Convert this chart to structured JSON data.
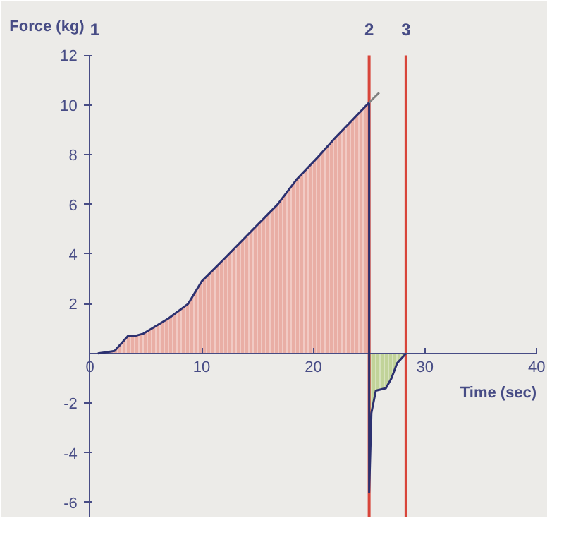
{
  "chart_data": {
    "type": "area",
    "xlabel": "Time (sec)",
    "ylabel": "Force (kg)",
    "xlim": [
      -8,
      41
    ],
    "ylim": [
      -6.6,
      14.2
    ],
    "xticks": [
      0,
      10,
      20,
      30,
      40
    ],
    "yticks": [
      -6,
      -4,
      -2,
      2,
      4,
      6,
      8,
      10,
      12
    ],
    "grid": false,
    "series": [
      {
        "color": "#e9a79d",
        "x": [
          0.7,
          1.5,
          2.2,
          2.8,
          3.4,
          4.0,
          4.8,
          7.0,
          8.8,
          10,
          12,
          14.4,
          16.8,
          18.5,
          20.4,
          22,
          23.5,
          25
        ],
        "values": [
          0,
          0.05,
          0.1,
          0.4,
          0.7,
          0.7,
          0.8,
          1.4,
          2.0,
          2.9,
          3.8,
          4.9,
          6.0,
          7.0,
          7.9,
          8.7,
          9.4,
          10.1
        ]
      },
      {
        "color": "#bcd090",
        "x": [
          25,
          25.2,
          25.6,
          26.5,
          27,
          27.5,
          28.3
        ],
        "values": [
          -5.6,
          -2.4,
          -1.5,
          -1.4,
          -1.0,
          -0.4,
          0
        ]
      },
      {
        "type": "line",
        "color": "#2c3170",
        "x": [
          0.7,
          1.5,
          2.2,
          2.8,
          3.4,
          4.0,
          4.8,
          7.0,
          8.8,
          10,
          12,
          14.4,
          16.8,
          18.5,
          20.4,
          22,
          23.5,
          25,
          25,
          25.2,
          25.6,
          26.5,
          27,
          27.5,
          28.3
        ],
        "values": [
          0,
          0.05,
          0.1,
          0.4,
          0.7,
          0.7,
          0.8,
          1.4,
          2.0,
          2.9,
          3.8,
          4.9,
          6.0,
          7.0,
          7.9,
          8.7,
          9.4,
          10.1,
          -5.6,
          -2.4,
          -1.5,
          -1.4,
          -1.0,
          -0.4,
          0
        ]
      },
      {
        "type": "line",
        "color": "#808080",
        "x": [
          25,
          25.9
        ],
        "values": [
          10.1,
          10.5
        ]
      }
    ],
    "ref_lines": [
      {
        "axis": "x",
        "value": 25,
        "color": "#d8453a"
      },
      {
        "axis": "x",
        "value": 28.3,
        "color": "#d8453a"
      }
    ],
    "annotations": [
      "1",
      {
        "text": "2",
        "x": 25,
        "y": 12
      },
      {
        "text": "3",
        "x": 28.3,
        "y": 12
      }
    ]
  }
}
